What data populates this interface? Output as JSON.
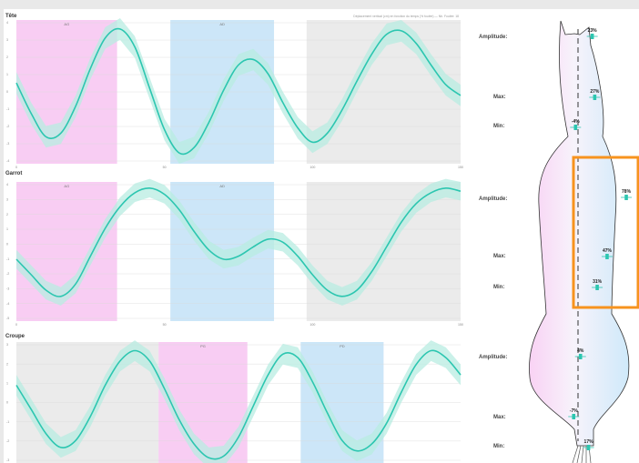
{
  "subtitle": "Déplacement vertical (cm) en fonction du temps (% foulée) — Nb. Foulée: 18",
  "panels": [
    {
      "title": "Tête",
      "yticks": [
        "4",
        "3",
        "2",
        "1",
        "0",
        "-1",
        "-2",
        "-3",
        "-4"
      ],
      "xticks": [
        "0",
        "50",
        "100",
        "150"
      ],
      "phases": [
        {
          "label": "AG",
          "x0": 0,
          "x1": 34,
          "color": "pink"
        },
        {
          "label": "AD",
          "x0": 52,
          "x1": 87,
          "color": "blue"
        },
        {
          "label": "",
          "x0": 98,
          "x1": 150,
          "color": "gray"
        }
      ],
      "chart_data": {
        "type": "line",
        "x": [
          0,
          5,
          10,
          15,
          20,
          25,
          30,
          35,
          40,
          45,
          50,
          55,
          60,
          65,
          70,
          75,
          80,
          85,
          90,
          95,
          100,
          105,
          110,
          115,
          120,
          125,
          130,
          135,
          140,
          145,
          150
        ],
        "series": [
          {
            "values": [
              0.5,
              -1.2,
              -2.5,
              -2.3,
              -0.8,
              1.3,
              3.0,
              3.5,
              2.5,
              0.2,
              -2.1,
              -3.4,
              -3.1,
              -1.7,
              0.1,
              1.5,
              1.8,
              1.0,
              -0.6,
              -2.0,
              -2.8,
              -2.3,
              -1.0,
              0.6,
              2.1,
              3.2,
              3.4,
              2.7,
              1.5,
              0.4,
              -0.2
            ]
          }
        ],
        "ylim": [
          -4,
          4
        ],
        "xlim": [
          0,
          150
        ]
      }
    },
    {
      "title": "Garrot",
      "yticks": [
        "4",
        "3",
        "2",
        "1",
        "0",
        "-1",
        "-2",
        "-3",
        "-4",
        "-5"
      ],
      "xticks": [
        "0",
        "50",
        "100",
        "150"
      ],
      "phases": [
        {
          "label": "AG",
          "x0": 0,
          "x1": 34,
          "color": "pink"
        },
        {
          "label": "AD",
          "x0": 52,
          "x1": 87,
          "color": "blue"
        },
        {
          "label": "",
          "x0": 98,
          "x1": 150,
          "color": "gray"
        }
      ],
      "chart_data": {
        "type": "line",
        "x": [
          0,
          5,
          10,
          15,
          20,
          25,
          30,
          35,
          40,
          45,
          50,
          55,
          60,
          65,
          70,
          75,
          80,
          85,
          90,
          95,
          100,
          105,
          110,
          115,
          120,
          125,
          130,
          135,
          140,
          145,
          150
        ],
        "series": [
          {
            "values": [
              -1.0,
              -2.0,
              -3.0,
              -3.4,
              -2.6,
              -0.8,
              1.0,
              2.4,
              3.3,
              3.6,
              3.2,
              2.2,
              0.8,
              -0.4,
              -1.0,
              -0.8,
              -0.2,
              0.3,
              0.1,
              -0.8,
              -2.0,
              -3.0,
              -3.4,
              -3.0,
              -1.8,
              -0.2,
              1.4,
              2.6,
              3.3,
              3.6,
              3.4
            ]
          }
        ],
        "ylim": [
          -5,
          4
        ],
        "xlim": [
          0,
          150
        ]
      }
    },
    {
      "title": "Croupe",
      "yticks": [
        "3",
        "2",
        "1",
        "0",
        "-1",
        "-2",
        "-3"
      ],
      "xticks": [
        "0",
        "50",
        "100",
        "150"
      ],
      "phases": [
        {
          "label": "",
          "x0": 0,
          "x1": 48,
          "color": "gray"
        },
        {
          "label": "PG",
          "x0": 48,
          "x1": 78,
          "color": "pink"
        },
        {
          "label": "PD",
          "x0": 96,
          "x1": 124,
          "color": "blue"
        }
      ],
      "chart_data": {
        "type": "line",
        "x": [
          0,
          5,
          10,
          15,
          20,
          25,
          30,
          35,
          40,
          45,
          50,
          55,
          60,
          65,
          70,
          75,
          80,
          85,
          90,
          95,
          100,
          105,
          110,
          115,
          120,
          125,
          130,
          135,
          140,
          145,
          150
        ],
        "series": [
          {
            "values": [
              1.0,
              -0.4,
              -1.8,
              -2.6,
              -2.2,
              -0.8,
              1.0,
              2.4,
              3.0,
              2.4,
              0.8,
              -1.0,
              -2.4,
              -3.2,
              -3.1,
              -2.0,
              -0.2,
              1.6,
              2.8,
              2.6,
              1.2,
              -0.6,
              -2.2,
              -2.8,
              -2.4,
              -1.2,
              0.6,
              2.2,
              3.0,
              2.6,
              1.6
            ]
          }
        ],
        "ylim": [
          -3.5,
          3.5
        ],
        "xlim": [
          0,
          150
        ]
      }
    }
  ],
  "silhouette_labels": [
    "Amplitude:",
    "Max:",
    "Min:",
    "Amplitude:",
    "Max:",
    "Min:",
    "Amplitude:",
    "Max:",
    "Min:"
  ],
  "markers": [
    {
      "label": "23%",
      "value": 23
    },
    {
      "label": "27%",
      "value": 27
    },
    {
      "label": "-4%",
      "value": -4
    },
    {
      "label": "78%",
      "value": 78
    },
    {
      "label": "47%",
      "value": 47
    },
    {
      "label": "31%",
      "value": 31
    },
    {
      "label": "4%",
      "value": 4
    },
    {
      "label": "-7%",
      "value": -7
    },
    {
      "label": "17%",
      "value": 17
    }
  ],
  "colors": {
    "line": "#2cc6b0",
    "band": "#b8ece2",
    "pink": "#f8cdf3",
    "blue": "#cce6f8",
    "gray": "#ebebeb",
    "highlight": "#f7931e"
  }
}
